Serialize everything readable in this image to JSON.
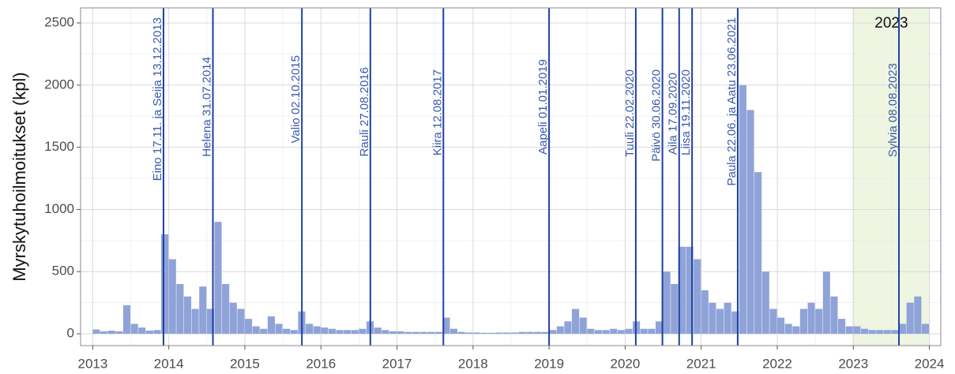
{
  "chart_data": {
    "type": "histogram",
    "ylabel": "Myrskytuhoilmoitukset (kpl)",
    "bins": [
      2013.0,
      2013.1,
      2013.2,
      2013.3,
      2013.4,
      2013.5,
      2013.6,
      2013.7,
      2013.8,
      2013.9,
      2014.0,
      2014.1,
      2014.2,
      2014.3,
      2014.4,
      2014.5,
      2014.6,
      2014.7,
      2014.8,
      2014.9,
      2015.0,
      2015.1,
      2015.2,
      2015.3,
      2015.4,
      2015.5,
      2015.6,
      2015.7,
      2015.8,
      2015.9,
      2016.0,
      2016.1,
      2016.2,
      2016.3,
      2016.4,
      2016.5,
      2016.6,
      2016.7,
      2016.8,
      2016.9,
      2017.0,
      2017.1,
      2017.2,
      2017.3,
      2017.4,
      2017.5,
      2017.6,
      2017.7,
      2017.8,
      2017.9,
      2018.0,
      2018.1,
      2018.2,
      2018.3,
      2018.4,
      2018.5,
      2018.6,
      2018.7,
      2018.8,
      2018.9,
      2019.0,
      2019.1,
      2019.2,
      2019.3,
      2019.4,
      2019.5,
      2019.6,
      2019.7,
      2019.8,
      2019.9,
      2020.0,
      2020.1,
      2020.2,
      2020.3,
      2020.4,
      2020.5,
      2020.6,
      2020.7,
      2020.8,
      2020.9,
      2021.0,
      2021.1,
      2021.2,
      2021.3,
      2021.4,
      2021.5,
      2021.6,
      2021.7,
      2021.8,
      2021.9,
      2022.0,
      2022.1,
      2022.2,
      2022.3,
      2022.4,
      2022.5,
      2022.6,
      2022.7,
      2022.8,
      2022.9,
      2023.0,
      2023.1,
      2023.2,
      2023.3,
      2023.4,
      2023.5,
      2023.6,
      2023.7,
      2023.8,
      2023.9,
      2024.0
    ],
    "counts": [
      35,
      20,
      25,
      20,
      230,
      80,
      50,
      25,
      30,
      800,
      600,
      400,
      300,
      200,
      380,
      200,
      900,
      400,
      250,
      200,
      120,
      60,
      40,
      140,
      80,
      40,
      30,
      180,
      80,
      60,
      50,
      40,
      30,
      30,
      30,
      40,
      100,
      50,
      30,
      20,
      20,
      15,
      15,
      15,
      15,
      15,
      130,
      40,
      15,
      10,
      10,
      8,
      8,
      10,
      10,
      10,
      15,
      15,
      15,
      15,
      30,
      60,
      100,
      200,
      130,
      40,
      30,
      30,
      40,
      30,
      40,
      100,
      40,
      40,
      100,
      500,
      400,
      700,
      700,
      600,
      350,
      250,
      200,
      250,
      180,
      2000,
      1800,
      1300,
      500,
      200,
      130,
      80,
      60,
      200,
      250,
      200,
      500,
      300,
      120,
      60,
      60,
      40,
      30,
      30,
      30,
      30,
      80,
      250,
      300,
      80
    ],
    "color": "#8fa3d9",
    "xlim": [
      2012.84,
      2024.15
    ],
    "xticks": [
      2013,
      2014,
      2015,
      2016,
      2017,
      2018,
      2019,
      2020,
      2021,
      2022,
      2023,
      2024
    ],
    "ylim": [
      -95,
      2621
    ],
    "yticks": [
      0,
      500,
      1000,
      1500,
      2000,
      2500
    ],
    "grid": true,
    "highlight": {
      "label": "2023",
      "range": [
        2023,
        2024
      ],
      "color": "#eef5e1"
    },
    "event_color": "#1f3fa3",
    "events": [
      {
        "label": "Eino 17.11. ja Seija 13.12.2013",
        "x": 2013.93
      },
      {
        "label": "Helena 31.07.2014",
        "x": 2014.58
      },
      {
        "label": "Valio 02.10.2015",
        "x": 2015.75
      },
      {
        "label": "Rauli 27.08.2016",
        "x": 2016.65
      },
      {
        "label": "Kiira 12.08.2017",
        "x": 2017.61
      },
      {
        "label": "Aapeli 01.01.2019",
        "x": 2019.0
      },
      {
        "label": "Tuuli 22.02.2020",
        "x": 2020.14
      },
      {
        "label": "Päivö 30.06.2020",
        "x": 2020.49
      },
      {
        "label": "Aila 17.09.2020",
        "x": 2020.71
      },
      {
        "label": "Liisa 19.11.2020",
        "x": 2020.88
      },
      {
        "label": "Paula 22.06. ja Aatu 23.06.2021",
        "x": 2021.48
      },
      {
        "label": "Sylvia 08.08.2023",
        "x": 2023.6
      }
    ]
  }
}
